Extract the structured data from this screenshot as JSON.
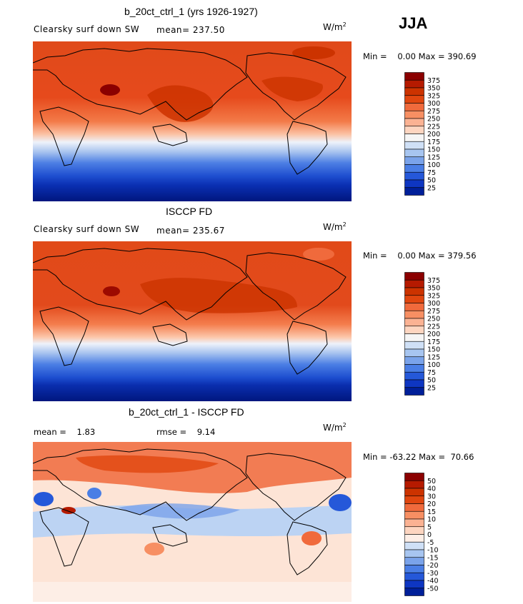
{
  "season": "JJA",
  "panels": [
    {
      "title": "b_20ct_ctrl_1 (yrs 1926-1927)",
      "field": "Clearsky surf down SW",
      "stat1": "mean= 237.50",
      "stat2": "",
      "units": "W/m",
      "units_exp": "2",
      "minmax": "Min =    0.00 Max = 390.69",
      "colorbar": {
        "labels": [
          "375",
          "350",
          "325",
          "300",
          "275",
          "250",
          "225",
          "200",
          "175",
          "150",
          "125",
          "100",
          "75",
          "50",
          "25"
        ],
        "colors": [
          "#8b0000",
          "#b51a00",
          "#cc3300",
          "#e0460f",
          "#f06a3c",
          "#f78f63",
          "#fbb293",
          "#fdd5c0",
          "#f5f5f5",
          "#cfe0f6",
          "#a7c5f0",
          "#7aa3ea",
          "#4a7ee5",
          "#2558d9",
          "#0e36c2",
          "#001f99"
        ]
      }
    },
    {
      "title": "ISCCP FD",
      "field": "Clearsky surf down SW",
      "stat1": "mean= 235.67",
      "stat2": "",
      "units": "W/m",
      "units_exp": "2",
      "minmax": "Min =    0.00 Max = 379.56",
      "colorbar": {
        "labels": [
          "375",
          "350",
          "325",
          "300",
          "275",
          "250",
          "225",
          "200",
          "175",
          "150",
          "125",
          "100",
          "75",
          "50",
          "25"
        ],
        "colors": [
          "#8b0000",
          "#b51a00",
          "#cc3300",
          "#e0460f",
          "#f06a3c",
          "#f78f63",
          "#fbb293",
          "#fdd5c0",
          "#f5f5f5",
          "#cfe0f6",
          "#a7c5f0",
          "#7aa3ea",
          "#4a7ee5",
          "#2558d9",
          "#0e36c2",
          "#001f99"
        ]
      }
    },
    {
      "title": "b_20ct_ctrl_1 - ISCCP FD",
      "field": "",
      "stat1": "mean =    1.83",
      "stat2": "rmse =    9.14",
      "units": "W/m",
      "units_exp": "2",
      "minmax": "Min = -63.22 Max =  70.66",
      "colorbar": {
        "labels": [
          "50",
          "40",
          "30",
          "20",
          "15",
          "10",
          "5",
          "0",
          "-5",
          "-10",
          "-15",
          "-20",
          "-30",
          "-40",
          "-50"
        ],
        "colors": [
          "#8b0000",
          "#b51a00",
          "#cc3300",
          "#e0460f",
          "#f06a3c",
          "#f78f63",
          "#fbb293",
          "#fdd5c0",
          "#fdeee6",
          "#cfe0f6",
          "#a7c5f0",
          "#7aa3ea",
          "#4a7ee5",
          "#2558d9",
          "#0e36c2",
          "#001f99"
        ]
      }
    }
  ],
  "chart_data": [
    {
      "type": "heatmap",
      "title": "b_20ct_ctrl_1 (yrs 1926-1927)",
      "subtitle": "Clearsky surf down SW",
      "mean": 237.5,
      "min": 0.0,
      "max": 390.69,
      "units": "W/m2",
      "levels": [
        25,
        50,
        75,
        100,
        125,
        150,
        175,
        200,
        225,
        250,
        275,
        300,
        325,
        350,
        375
      ]
    },
    {
      "type": "heatmap",
      "title": "ISCCP FD",
      "subtitle": "Clearsky surf down SW",
      "mean": 235.67,
      "min": 0.0,
      "max": 379.56,
      "units": "W/m2",
      "levels": [
        25,
        50,
        75,
        100,
        125,
        150,
        175,
        200,
        225,
        250,
        275,
        300,
        325,
        350,
        375
      ]
    },
    {
      "type": "heatmap",
      "title": "b_20ct_ctrl_1 - ISCCP FD",
      "mean": 1.83,
      "rmse": 9.14,
      "min": -63.22,
      "max": 70.66,
      "units": "W/m2",
      "levels": [
        -50,
        -40,
        -30,
        -20,
        -15,
        -10,
        -5,
        0,
        5,
        10,
        15,
        20,
        30,
        40,
        50
      ]
    }
  ]
}
